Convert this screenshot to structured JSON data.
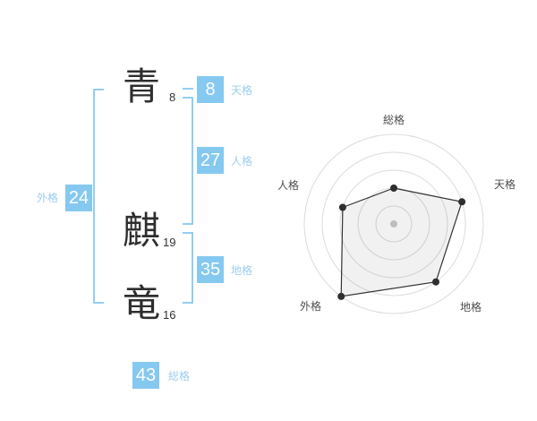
{
  "name_panel": {
    "characters": [
      {
        "char": "青",
        "strokes": "8"
      },
      {
        "char": "麒",
        "strokes": "19"
      },
      {
        "char": "竜",
        "strokes": "16"
      }
    ],
    "kaku": {
      "tenkaku": {
        "label": "天格",
        "value": "8"
      },
      "jinkaku": {
        "label": "人格",
        "value": "27"
      },
      "chikaku": {
        "label": "地格",
        "value": "35"
      },
      "gaikaku": {
        "label": "外格",
        "value": "24"
      },
      "soukaku": {
        "label": "総格",
        "value": "43"
      }
    }
  },
  "colors": {
    "accent_blue": "#85c9f0",
    "label_blue": "#9ccdee",
    "bracket_blue": "#92cef2",
    "kanji_dark": "#2e2e2e",
    "chart_line": "#333333",
    "ring_gray": "#dcdcdc",
    "center_dot_gray": "#c9c9c9",
    "chart_label_gray": "#4d4d4d"
  },
  "chart_data": {
    "type": "radar",
    "title": "",
    "grid": "circular",
    "rings": 5,
    "max_level": 5,
    "legend_position": "none",
    "axes": [
      {
        "label": "総格",
        "value": 43,
        "level": 2
      },
      {
        "label": "天格",
        "value": 8,
        "level": 4
      },
      {
        "label": "地格",
        "value": 35,
        "level": 4
      },
      {
        "label": "外格",
        "value": 24,
        "level": 5
      },
      {
        "label": "人格",
        "value": 27,
        "level": 3
      }
    ]
  }
}
